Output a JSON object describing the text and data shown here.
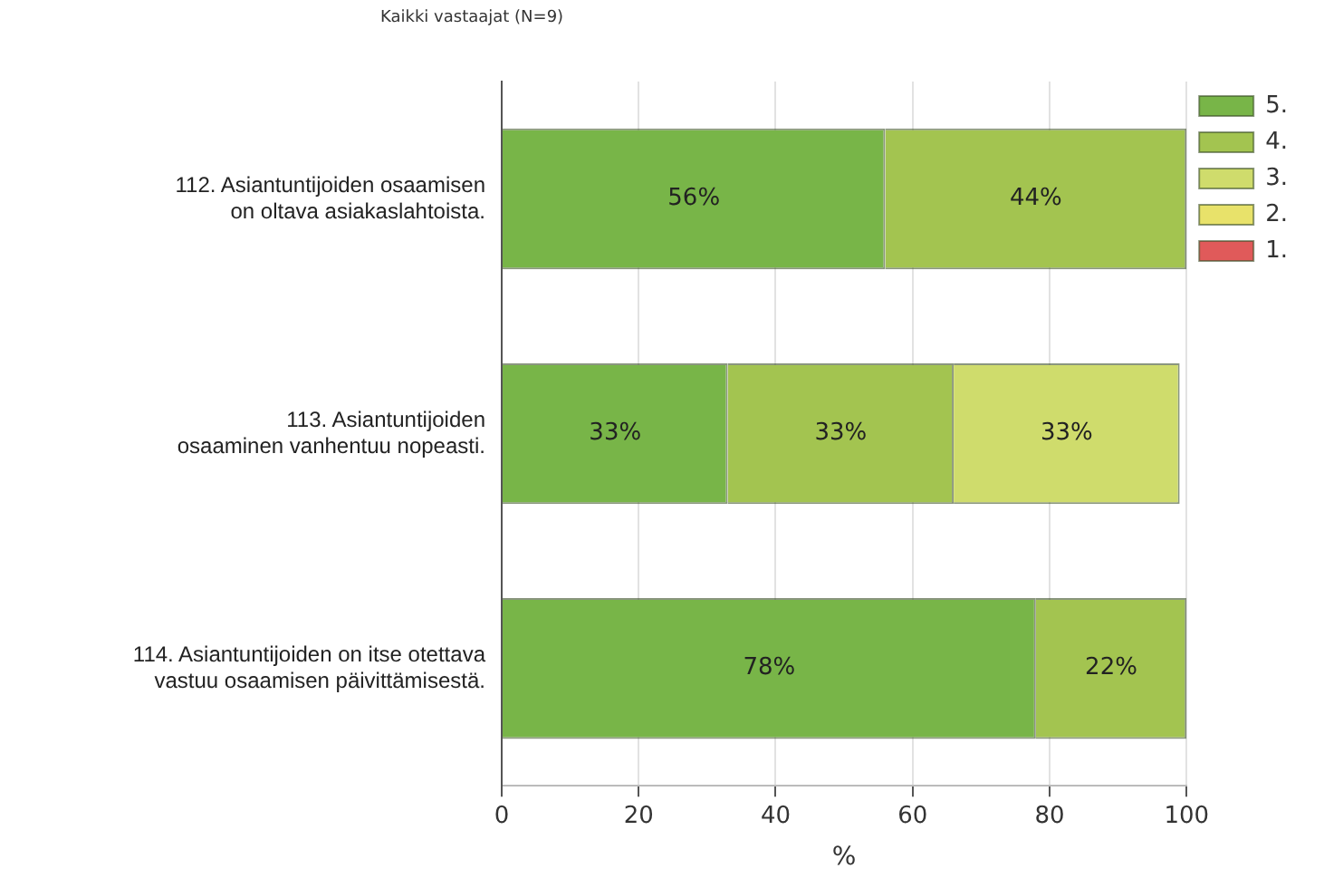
{
  "chart_data": {
    "type": "bar",
    "orientation": "horizontal",
    "stacked": true,
    "title": "Kaikki vastaajat (N=9)",
    "xlabel": "%",
    "categories": [
      "112. Asiantuntijoiden osaamisen on oltava asiakaslahtoista.",
      "113. Asiantuntijoiden osaaminen vanhentuu nopeasti.",
      "114. Asiantuntijoiden on itse otettava vastuu osaamisen päivittämisestä."
    ],
    "series": [
      {
        "name": "5.",
        "color": "#78b548",
        "values": [
          56,
          33,
          78
        ],
        "value_labels": [
          "56%",
          "33%",
          "78%"
        ]
      },
      {
        "name": "4.",
        "color": "#a3c450",
        "values": [
          44,
          33,
          22
        ],
        "value_labels": [
          "44%",
          "33%",
          "22%"
        ]
      },
      {
        "name": "3.",
        "color": "#cfdc6c",
        "values": [
          0,
          33,
          0
        ],
        "value_labels": [
          null,
          "33%",
          null
        ]
      },
      {
        "name": "2.",
        "color": "#e8e26a",
        "values": [
          0,
          0,
          0
        ],
        "value_labels": [
          null,
          null,
          null
        ]
      },
      {
        "name": "1.",
        "color": "#e05a5a",
        "values": [
          0,
          0,
          0
        ],
        "value_labels": [
          null,
          null,
          null
        ]
      }
    ],
    "xlim": [
      0,
      100
    ],
    "xticks": [
      0,
      20,
      40,
      60,
      80,
      100
    ],
    "grid": "x",
    "legend": "top right"
  }
}
